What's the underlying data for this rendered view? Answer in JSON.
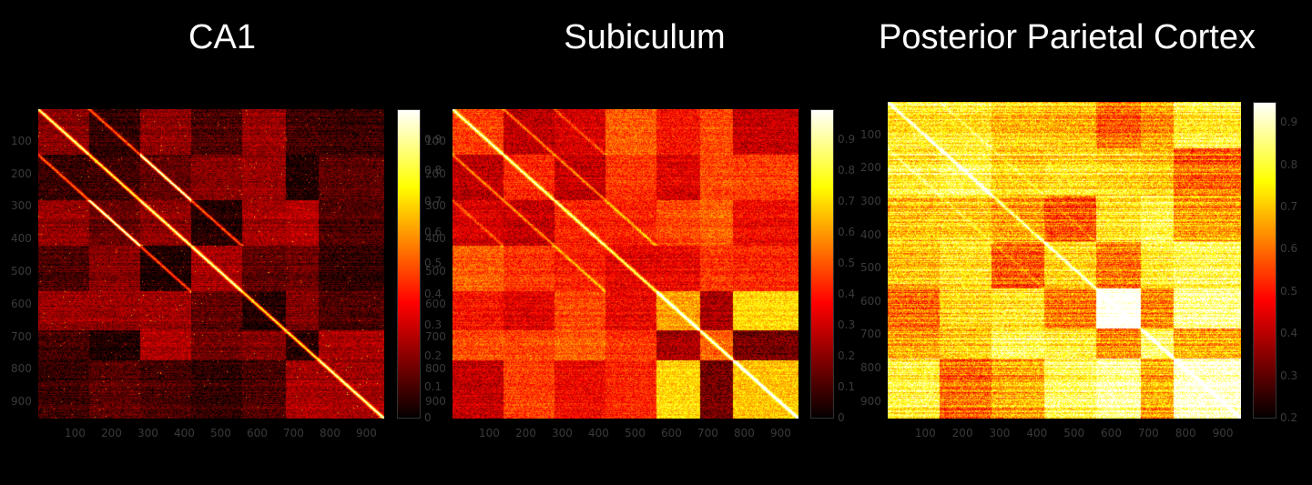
{
  "chart_data": [
    {
      "type": "heatmap",
      "title": "CA1",
      "colormap": "hot",
      "x_ticks": [
        100,
        200,
        300,
        400,
        500,
        600,
        700,
        800,
        900
      ],
      "y_ticks": [
        100,
        200,
        300,
        400,
        500,
        600,
        700,
        800,
        900
      ],
      "xlim": [
        1,
        950
      ],
      "ylim": [
        1,
        950
      ],
      "colorbar": {
        "min": 0,
        "max": 1,
        "ticks": [
          0,
          0.1,
          0.2,
          0.3,
          0.4,
          0.5,
          0.6,
          0.7,
          0.8,
          0.9
        ]
      },
      "background_level": 0.15,
      "diagonal_level": 0.9,
      "blocks": [
        [
          0,
          140
        ],
        [
          140,
          280
        ],
        [
          280,
          420
        ],
        [
          420,
          560
        ],
        [
          560,
          680
        ],
        [
          680,
          770
        ],
        [
          770,
          950
        ]
      ],
      "off_diagonal_bands": [
        [
          0,
          140,
          0.85
        ],
        [
          140,
          280,
          0.85
        ],
        [
          280,
          420,
          0.85
        ],
        [
          280,
          140,
          0.8
        ]
      ]
    },
    {
      "type": "heatmap",
      "title": "Subiculum",
      "colormap": "hot",
      "x_ticks": [
        100,
        200,
        300,
        400,
        500,
        600,
        700,
        800,
        900
      ],
      "y_ticks": [
        100,
        200,
        300,
        400,
        500,
        600,
        700,
        800,
        900
      ],
      "xlim": [
        1,
        950
      ],
      "ylim": [
        1,
        950
      ],
      "colorbar": {
        "min": 0,
        "max": 1,
        "ticks": [
          0,
          0.1,
          0.2,
          0.3,
          0.4,
          0.5,
          0.6,
          0.7,
          0.8,
          0.9
        ]
      },
      "background_level": 0.4,
      "diagonal_level": 0.95,
      "blocks": [
        [
          0,
          140
        ],
        [
          140,
          280
        ],
        [
          280,
          420
        ],
        [
          420,
          560
        ],
        [
          560,
          680
        ],
        [
          680,
          770
        ],
        [
          770,
          950
        ]
      ],
      "off_diagonal_bands": [
        [
          0,
          140,
          0.85
        ],
        [
          140,
          280,
          0.85
        ],
        [
          280,
          420,
          0.8
        ],
        [
          0,
          280,
          0.7
        ]
      ]
    },
    {
      "type": "heatmap",
      "title": "Posterior Parietal Cortex",
      "colormap": "hot",
      "x_ticks": [
        100,
        200,
        300,
        400,
        500,
        600,
        700,
        800,
        900
      ],
      "y_ticks": [
        100,
        200,
        300,
        400,
        500,
        600,
        700,
        800,
        900
      ],
      "xlim": [
        1,
        950
      ],
      "ylim": [
        1,
        950
      ],
      "colorbar": {
        "min": 0.2,
        "max": 0.95,
        "ticks": [
          0.2,
          0.3,
          0.4,
          0.5,
          0.6,
          0.7,
          0.8,
          0.9
        ]
      },
      "background_level": 0.7,
      "diagonal_level": 0.95,
      "blocks": [
        [
          0,
          140
        ],
        [
          140,
          280
        ],
        [
          280,
          420
        ],
        [
          420,
          560
        ],
        [
          560,
          680
        ],
        [
          680,
          770
        ],
        [
          770,
          950
        ]
      ],
      "off_diagonal_bands": [
        [
          0,
          140,
          0.85
        ],
        [
          140,
          280,
          0.8
        ],
        [
          280,
          420,
          0.8
        ]
      ]
    }
  ]
}
